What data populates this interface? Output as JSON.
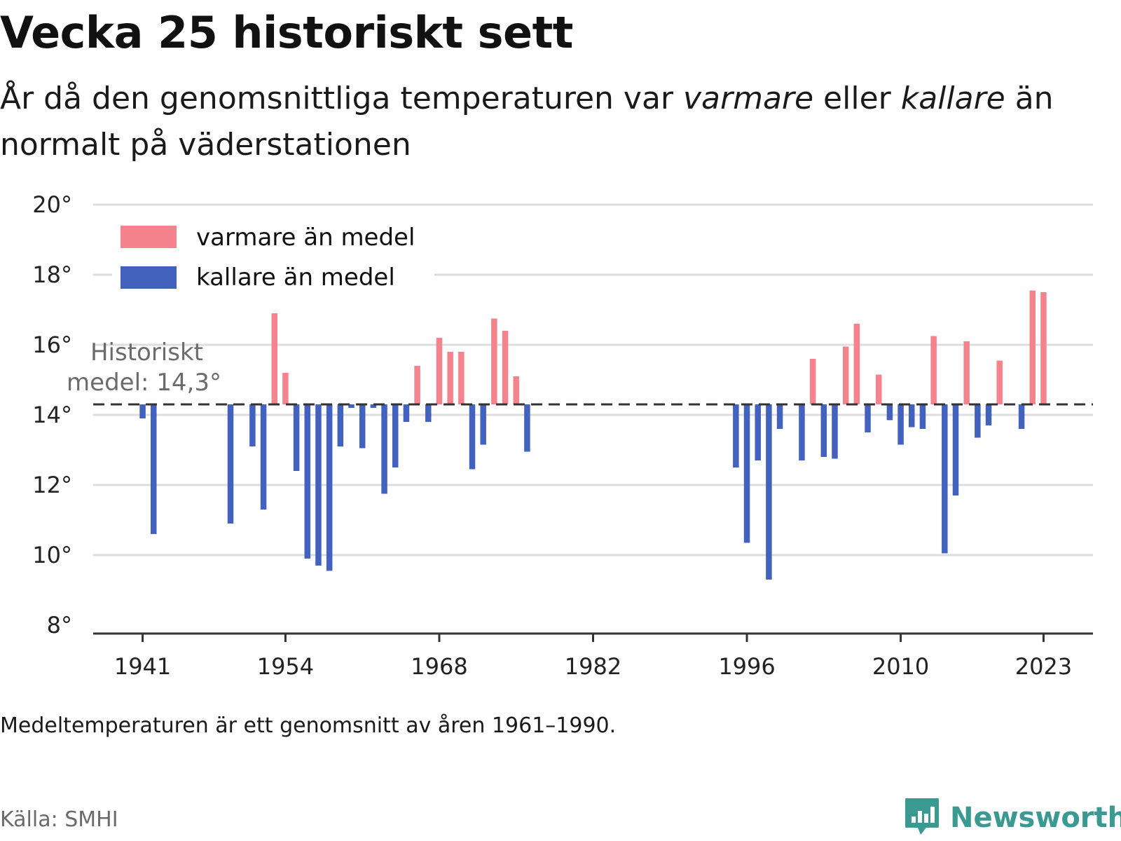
{
  "title": "Vecka 25 historiskt sett",
  "subtitle": {
    "part1": "År då den genomsnittliga temperaturen var ",
    "warm_word": "varmare",
    "part2": " eller ",
    "cold_word": "kallare",
    "part3": " än normalt på väderstationen"
  },
  "footnote": "Medeltemperaturen är ett genomsnitt av åren 1961–1990.",
  "source": "Källa: SMHI",
  "brand": "Newsworthy",
  "colors": {
    "warm": "#f5838e",
    "cold": "#4262bd",
    "grid": "#dddddd",
    "axis": "#333333",
    "brand": "#3a9a92"
  },
  "chart_data": {
    "type": "bar",
    "baseline": 14.3,
    "baseline_label_line1": "Historiskt",
    "baseline_label_line2": "medel: 14,3°",
    "ylim": [
      8,
      20
    ],
    "xlim": [
      1936.5,
      2027.5
    ],
    "yticks": [
      8,
      10,
      12,
      14,
      16,
      18,
      20
    ],
    "ytick_labels": [
      "8°",
      "10°",
      "12°",
      "14°",
      "16°",
      "18°",
      "20°"
    ],
    "xticks": [
      1941,
      1954,
      1968,
      1982,
      1996,
      2010,
      2023
    ],
    "xtick_labels": [
      "1941",
      "1954",
      "1968",
      "1982",
      "1996",
      "2010",
      "2023"
    ],
    "grid": true,
    "legend_position": "top-left",
    "series": [
      {
        "name": "varmare än medel",
        "color": "#f5838e"
      },
      {
        "name": "kallare än medel",
        "color": "#4262bd"
      }
    ],
    "x": [
      1941,
      1942,
      1949,
      1951,
      1952,
      1953,
      1954,
      1955,
      1956,
      1957,
      1958,
      1959,
      1960,
      1961,
      1962,
      1963,
      1964,
      1965,
      1966,
      1967,
      1968,
      1969,
      1970,
      1971,
      1972,
      1973,
      1974,
      1975,
      1976,
      1995,
      1996,
      1997,
      1998,
      1999,
      2001,
      2002,
      2003,
      2004,
      2005,
      2006,
      2007,
      2008,
      2009,
      2010,
      2011,
      2012,
      2013,
      2014,
      2015,
      2016,
      2017,
      2018,
      2019,
      2021,
      2022,
      2023
    ],
    "values": [
      13.9,
      10.6,
      10.9,
      13.1,
      11.3,
      16.9,
      15.2,
      12.4,
      9.9,
      9.7,
      9.55,
      13.1,
      14.2,
      13.05,
      14.2,
      11.75,
      12.5,
      13.8,
      15.4,
      13.8,
      16.2,
      15.8,
      15.8,
      12.45,
      13.15,
      16.75,
      16.4,
      15.1,
      12.95,
      12.5,
      10.35,
      12.7,
      9.3,
      13.6,
      12.7,
      15.6,
      12.8,
      12.75,
      15.95,
      16.6,
      13.5,
      15.15,
      13.85,
      13.15,
      13.65,
      13.6,
      16.25,
      10.05,
      11.7,
      16.1,
      13.35,
      13.7,
      15.55,
      13.6,
      17.55,
      17.5
    ]
  }
}
